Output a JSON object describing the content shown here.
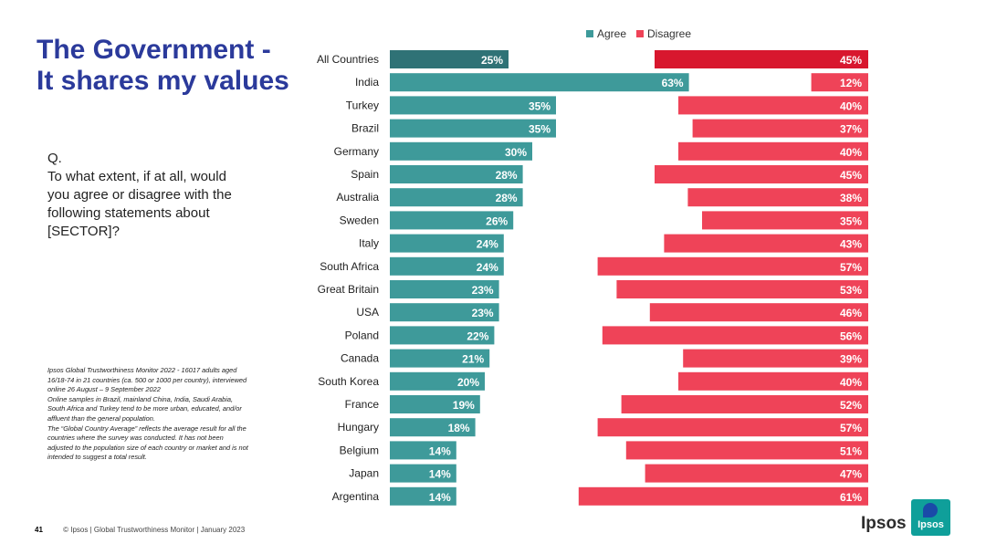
{
  "title": {
    "line1": "The Government -",
    "line2": "It shares my values"
  },
  "question": {
    "q": "Q.",
    "line1": "To what extent, if at all, would",
    "line2": "you agree or disagree with the",
    "line3": "following statements about",
    "line4": "[SECTOR]?"
  },
  "notes": [
    "Ipsos Global Trustworthiness Monitor 2022 - 16017 adults aged",
    "16/18-74 in 21 countries (ca. 500 or 1000 per country), interviewed",
    "online 26 August – 9 September 2022",
    "Online samples in Brazil, mainland China, India, Saudi Arabia,",
    "South Africa and Turkey tend to be more urban, educated, and/or",
    "affluent than the general population.",
    "The “Global Country Average” reflects the average result for all the",
    "countries where the survey was conducted. It has not been",
    "adjusted to the population size of each country or market and is not",
    "intended to suggest a total result."
  ],
  "footer": {
    "page": "41",
    "text": "© Ipsos | Global Trustworthiness Monitor | January 2023"
  },
  "logo": {
    "text": "Ipsos",
    "box_text": "Ipsos"
  },
  "colors": {
    "agree": "#3e9a9a",
    "agree_highlight": "#2f7276",
    "disagree": "#ef4358",
    "disagree_highlight": "#d8172e"
  },
  "chart_data": {
    "type": "bar",
    "orientation": "horizontal-diverging",
    "categories": [
      "All Countries",
      "India",
      "Turkey",
      "Brazil",
      "Germany",
      "Spain",
      "Australia",
      "Sweden",
      "Italy",
      "South Africa",
      "Great Britain",
      "USA",
      "Poland",
      "Canada",
      "South Korea",
      "France",
      "Hungary",
      "Belgium",
      "Japan",
      "Argentina"
    ],
    "series": [
      {
        "name": "Agree",
        "values": [
          25,
          63,
          35,
          35,
          30,
          28,
          28,
          26,
          24,
          24,
          23,
          23,
          22,
          21,
          20,
          19,
          18,
          14,
          14,
          14
        ]
      },
      {
        "name": "Disagree",
        "values": [
          45,
          12,
          40,
          37,
          40,
          45,
          38,
          35,
          43,
          57,
          53,
          46,
          56,
          39,
          40,
          52,
          57,
          51,
          47,
          61
        ]
      }
    ],
    "highlight_category": "All Countries",
    "legend_position": "top",
    "value_suffix": "%"
  }
}
